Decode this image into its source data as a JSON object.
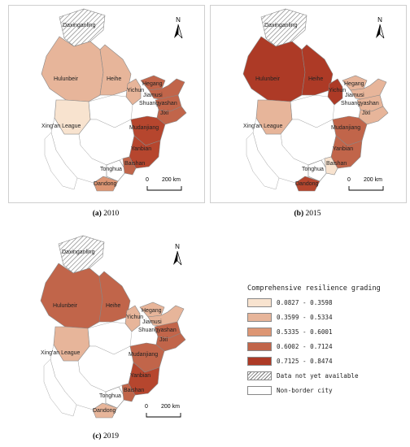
{
  "panels": [
    {
      "caption_letter": "(a)",
      "caption_year": "2010",
      "colors": {
        "daxinganling": "hatch",
        "hulunbeir": "#e7b59a",
        "heihe": "#e7b59a",
        "yichun": "#e7b59a",
        "hegang": "#c1654a",
        "jiamusi": "#c1654a",
        "shuangyashan": "#c1654a",
        "jixi": "#c1654a",
        "xingan": "#f8e3cf",
        "mudanjiang": "#b6462e",
        "yanbian": "#b6462e",
        "baishan": "#c1654a",
        "tonghua": "#ffffff",
        "dandong": "#dd9674"
      }
    },
    {
      "caption_letter": "(b)",
      "caption_year": "2015",
      "colors": {
        "daxinganling": "hatch",
        "hulunbeir": "#ad3a26",
        "heihe": "#ad3a26",
        "yichun": "#ad3a26",
        "hegang": "#e7b59a",
        "jiamusi": "#e7b59a",
        "shuangyashan": "#e7b59a",
        "jixi": "#e7b59a",
        "xingan": "#e7b59a",
        "mudanjiang": "#c1654a",
        "yanbian": "#c1654a",
        "baishan": "#f8e3cf",
        "tonghua": "#ffffff",
        "dandong": "#b6462e"
      }
    },
    {
      "caption_letter": "(c)",
      "caption_year": "2019",
      "colors": {
        "daxinganling": "hatch",
        "hulunbeir": "#c1654a",
        "heihe": "#c1654a",
        "yichun": "#e7b59a",
        "hegang": "#e7b59a",
        "jiamusi": "#e7b59a",
        "shuangyashan": "#c1654a",
        "jixi": "#c1654a",
        "xingan": "#e7b59a",
        "mudanjiang": "#c1654a",
        "yanbian": "#b6462e",
        "baishan": "#c1654a",
        "tonghua": "#ffffff",
        "dandong": "#e7b59a"
      }
    }
  ],
  "city_labels": {
    "daxinganling": "Daxinganling",
    "hulunbeir": "Hulunbeir",
    "heihe": "Heihe",
    "hegang": "Hegang",
    "yichun": "Yichun",
    "jiamusi": "Jiamusi",
    "shuangyashan": "Shuangyashan",
    "jixi": "Jixi",
    "xingan": "Xing'an League",
    "mudanjiang": "Mudanjiang",
    "yanbian": "Yanbian",
    "tonghua": "Tonghua",
    "baishan": "Baishan",
    "dandong": "Dandong"
  },
  "north_label": "N",
  "scale": {
    "zero": "0",
    "distance": "200 km"
  },
  "legend": {
    "title": "Comprehensive resilience grading",
    "items": [
      {
        "label": "0.0827 - 0.3598",
        "color": "#f8e3cf"
      },
      {
        "label": "0.3599 - 0.5334",
        "color": "#e7b59a"
      },
      {
        "label": "0.5335 - 0.6001",
        "color": "#dd9674"
      },
      {
        "label": "0.6002 - 0.7124",
        "color": "#c1654a"
      },
      {
        "label": "0.7125 - 0.8474",
        "color": "#ad3a26"
      },
      {
        "label": "Data not yet available",
        "color": "hatch"
      },
      {
        "label": "Non-border city",
        "color": "#ffffff"
      }
    ]
  }
}
